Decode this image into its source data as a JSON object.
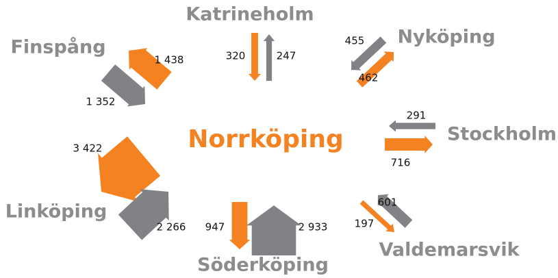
{
  "center": "Norrköping",
  "places": [
    {
      "name": "Katrineholm",
      "flows": [
        {
          "value": 320,
          "color": "#f58220"
        },
        {
          "value": 247,
          "color": "#808285"
        }
      ]
    },
    {
      "name": "Nyköping",
      "flows": [
        {
          "value": 455,
          "color": "#808285"
        },
        {
          "value": 462,
          "color": "#f58220"
        }
      ]
    },
    {
      "name": "Stockholm",
      "flows": [
        {
          "value": 291,
          "color": "#808285"
        },
        {
          "value": 716,
          "color": "#f58220"
        }
      ]
    },
    {
      "name": "Valdemarsvik",
      "flows": [
        {
          "value": 601,
          "color": "#808285"
        },
        {
          "value": 197,
          "color": "#f58220"
        }
      ]
    },
    {
      "name": "Söderköping",
      "flows": [
        {
          "value": 947,
          "color": "#f58220"
        },
        {
          "value": 2933,
          "label": "2 933",
          "color": "#808285"
        }
      ]
    },
    {
      "name": "Linköping",
      "flows": [
        {
          "value": 3422,
          "label": "3 422",
          "color": "#f58220"
        },
        {
          "value": 2266,
          "label": "2 266",
          "color": "#808285"
        }
      ]
    },
    {
      "name": "Finspång",
      "flows": [
        {
          "value": 1438,
          "label": "1 438",
          "color": "#f58220"
        },
        {
          "value": 1352,
          "label": "1 352",
          "color": "#808285"
        }
      ]
    }
  ]
}
